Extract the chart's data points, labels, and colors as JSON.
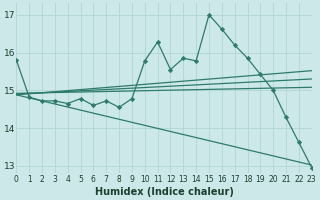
{
  "xlabel": "Humidex (Indice chaleur)",
  "xlim": [
    0,
    23
  ],
  "ylim": [
    12.8,
    17.3
  ],
  "yticks": [
    13,
    14,
    15,
    16,
    17
  ],
  "xtick_labels": [
    "0",
    "1",
    "2",
    "3",
    "4",
    "5",
    "6",
    "7",
    "8",
    "9",
    "10",
    "11",
    "12",
    "13",
    "14",
    "15",
    "16",
    "17",
    "18",
    "19",
    "20",
    "21",
    "22",
    "23"
  ],
  "bg_color": "#cce8e8",
  "line_color": "#2e7b6b",
  "grid_color": "#b0d4d4",
  "jagged": {
    "x": [
      0,
      1,
      2,
      3,
      4,
      5,
      6,
      7,
      8,
      9,
      10,
      11,
      12,
      13,
      14,
      15,
      16,
      17,
      18,
      19,
      20,
      21,
      22,
      23
    ],
    "y": [
      15.8,
      14.82,
      14.72,
      14.72,
      14.65,
      14.78,
      14.6,
      14.72,
      14.55,
      14.78,
      15.78,
      16.28,
      15.55,
      15.85,
      15.78,
      17.0,
      16.62,
      16.2,
      15.85,
      15.42,
      15.0,
      14.28,
      13.62,
      12.95
    ]
  },
  "flat_lines": [
    {
      "x0": 0,
      "y0": 14.92,
      "x1": 23,
      "y1": 15.08
    },
    {
      "x0": 0,
      "y0": 14.9,
      "x1": 23,
      "y1": 15.3
    },
    {
      "x0": 0,
      "y0": 14.88,
      "x1": 23,
      "y1": 15.52
    }
  ],
  "decline_line": {
    "x0": 0,
    "y0": 14.88,
    "x1": 23,
    "y1": 13.02
  }
}
